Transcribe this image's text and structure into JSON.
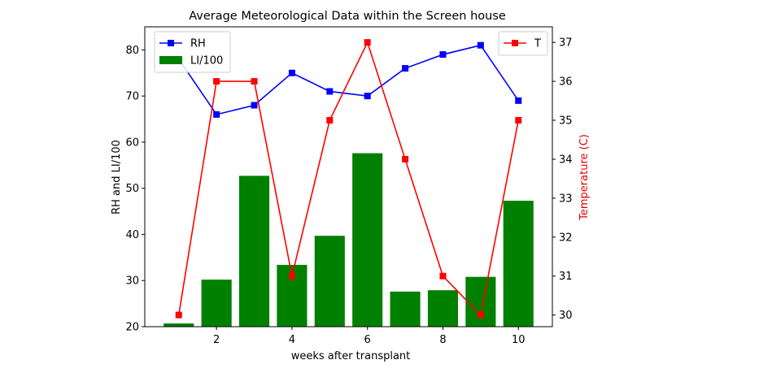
{
  "chart_data": {
    "type": "bar+line",
    "title": "Average Meteorological Data within the Screen house",
    "xlabel": "weeks after transplant",
    "ylabel_left": "RH and LI/100",
    "ylabel_right": "Temperature (C)",
    "x": [
      1,
      2,
      3,
      4,
      5,
      6,
      7,
      8,
      9,
      10
    ],
    "xlim": [
      0.1,
      10.9
    ],
    "xticks": [
      "2",
      "4",
      "6",
      "8",
      "10"
    ],
    "xtick_values": [
      2,
      4,
      6,
      8,
      10
    ],
    "ylim_left": [
      20,
      85
    ],
    "yticks_left": [
      "20",
      "30",
      "40",
      "50",
      "60",
      "70",
      "80"
    ],
    "ytick_values_left": [
      20,
      30,
      40,
      50,
      60,
      70,
      80
    ],
    "ylim_right": [
      29.7,
      37.4
    ],
    "yticks_right": [
      "30",
      "31",
      "32",
      "33",
      "34",
      "35",
      "36",
      "37"
    ],
    "ytick_values_right": [
      30,
      31,
      32,
      33,
      34,
      35,
      36,
      37
    ],
    "grid": false,
    "series": [
      {
        "name": "LI/100",
        "kind": "bar",
        "axis": "left",
        "color": "#008000",
        "values": [
          20.7,
          30.2,
          52.7,
          33.4,
          39.7,
          57.6,
          27.6,
          27.9,
          30.8,
          47.3
        ]
      },
      {
        "name": "RH",
        "kind": "line",
        "axis": "left",
        "color": "#0000ff",
        "marker": "square",
        "values": [
          78,
          66,
          68,
          75,
          71,
          70,
          76,
          79,
          81,
          69
        ]
      },
      {
        "name": "T",
        "kind": "line",
        "axis": "right",
        "color": "#ff0000",
        "marker": "square",
        "values": [
          30,
          36,
          36,
          31,
          35,
          37,
          34,
          31,
          30,
          35
        ]
      }
    ],
    "legend_left": {
      "placement": "upper-left",
      "entries": [
        "RH",
        "LI/100"
      ]
    },
    "legend_right": {
      "placement": "upper-right",
      "entries": [
        "T"
      ]
    }
  }
}
